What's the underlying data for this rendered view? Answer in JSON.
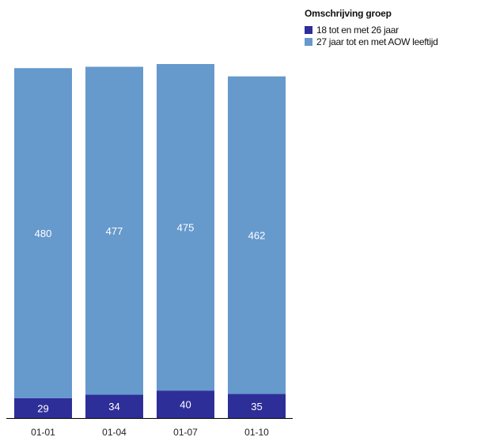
{
  "chart_data": {
    "type": "bar",
    "stacked": true,
    "categories": [
      "01-01",
      "01-04",
      "01-07",
      "01-10"
    ],
    "series": [
      {
        "name": "18 tot en met 26 jaar",
        "values": [
          29,
          34,
          40,
          35
        ],
        "color": "#2e2e99"
      },
      {
        "name": "27 jaar tot en met AOW leeftijd",
        "values": [
          480,
          477,
          475,
          462
        ],
        "color": "#6699cc"
      }
    ],
    "legend_title": "Omschrijving groep",
    "legend_position": "top-right",
    "data_label_color": "#ffffff",
    "axis_color": "#000000",
    "grid": false,
    "ylim": [
      0,
      515
    ]
  }
}
